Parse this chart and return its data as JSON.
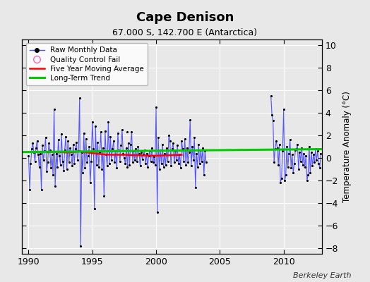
{
  "title": "Cape Denison",
  "subtitle": "67.000 S, 142.700 E (Antarctica)",
  "ylabel": "Temperature Anomaly (°C)",
  "watermark": "Berkeley Earth",
  "xlim": [
    1989.5,
    2013.0
  ],
  "ylim": [
    -8.5,
    10.5
  ],
  "yticks": [
    -8,
    -6,
    -4,
    -2,
    0,
    2,
    4,
    6,
    8,
    10
  ],
  "xticks": [
    1990,
    1995,
    2000,
    2005,
    2010
  ],
  "bg_color": "#e8e8e8",
  "raw_color": "#5555ff",
  "ma_color": "#ff0000",
  "trend_color": "#00cc00",
  "qc_color": "#ff69b4",
  "segment1": [
    [
      1990.0,
      0.2
    ],
    [
      1990.083,
      -2.8
    ],
    [
      1990.167,
      -0.5
    ],
    [
      1990.25,
      0.8
    ],
    [
      1990.333,
      1.3
    ],
    [
      1990.417,
      0.5
    ],
    [
      1990.5,
      -0.3
    ],
    [
      1990.583,
      0.9
    ],
    [
      1990.667,
      1.5
    ],
    [
      1990.75,
      0.3
    ],
    [
      1990.833,
      -0.8
    ],
    [
      1990.917,
      0.4
    ],
    [
      1991.0,
      -2.8
    ],
    [
      1991.083,
      1.1
    ],
    [
      1991.167,
      -0.2
    ],
    [
      1991.25,
      0.6
    ],
    [
      1991.333,
      1.8
    ],
    [
      1991.417,
      -1.2
    ],
    [
      1991.5,
      -0.4
    ],
    [
      1991.583,
      1.3
    ],
    [
      1991.667,
      0.7
    ],
    [
      1991.75,
      -0.9
    ],
    [
      1991.833,
      0.3
    ],
    [
      1991.917,
      -1.5
    ],
    [
      1992.0,
      4.3
    ],
    [
      1992.083,
      -2.5
    ],
    [
      1992.167,
      0.4
    ],
    [
      1992.25,
      -0.8
    ],
    [
      1992.333,
      1.6
    ],
    [
      1992.417,
      0.2
    ],
    [
      1992.5,
      -0.6
    ],
    [
      1992.583,
      2.1
    ],
    [
      1992.667,
      -0.3
    ],
    [
      1992.75,
      -1.1
    ],
    [
      1992.833,
      0.7
    ],
    [
      1992.917,
      1.9
    ],
    [
      1993.0,
      -1.0
    ],
    [
      1993.083,
      1.5
    ],
    [
      1993.167,
      -0.4
    ],
    [
      1993.25,
      0.9
    ],
    [
      1993.333,
      0.3
    ],
    [
      1993.417,
      -0.7
    ],
    [
      1993.5,
      1.2
    ],
    [
      1993.583,
      -0.5
    ],
    [
      1993.667,
      0.8
    ],
    [
      1993.75,
      1.4
    ],
    [
      1993.833,
      -0.2
    ],
    [
      1993.917,
      0.6
    ],
    [
      1994.0,
      5.3
    ],
    [
      1994.083,
      -7.8
    ],
    [
      1994.167,
      0.5
    ],
    [
      1994.25,
      -1.3
    ],
    [
      1994.333,
      2.2
    ],
    [
      1994.417,
      -0.9
    ],
    [
      1994.5,
      1.7
    ],
    [
      1994.583,
      -0.4
    ],
    [
      1994.667,
      0.2
    ],
    [
      1994.75,
      1.0
    ],
    [
      1994.833,
      -2.2
    ],
    [
      1994.917,
      -0.3
    ],
    [
      1995.0,
      3.2
    ],
    [
      1995.083,
      0.8
    ],
    [
      1995.167,
      -4.5
    ],
    [
      1995.25,
      2.8
    ],
    [
      1995.333,
      -0.6
    ],
    [
      1995.417,
      1.4
    ],
    [
      1995.5,
      -0.8
    ],
    [
      1995.583,
      0.5
    ],
    [
      1995.667,
      2.3
    ],
    [
      1995.75,
      -1.0
    ],
    [
      1995.833,
      0.9
    ],
    [
      1995.917,
      -3.4
    ],
    [
      1996.0,
      2.4
    ],
    [
      1996.083,
      0.3
    ],
    [
      1996.167,
      -0.7
    ],
    [
      1996.25,
      3.2
    ],
    [
      1996.333,
      -0.5
    ],
    [
      1996.417,
      1.9
    ],
    [
      1996.5,
      -0.2
    ],
    [
      1996.583,
      0.8
    ],
    [
      1996.667,
      1.5
    ],
    [
      1996.75,
      -0.4
    ],
    [
      1996.833,
      0.6
    ],
    [
      1996.917,
      -0.9
    ],
    [
      1997.0,
      2.2
    ],
    [
      1997.083,
      0.7
    ],
    [
      1997.167,
      -0.3
    ],
    [
      1997.25,
      1.1
    ],
    [
      1997.333,
      2.5
    ],
    [
      1997.417,
      0.4
    ],
    [
      1997.5,
      0.0
    ],
    [
      1997.583,
      -0.5
    ],
    [
      1997.667,
      0.9
    ],
    [
      1997.75,
      -0.8
    ],
    [
      1997.833,
      1.3
    ],
    [
      1997.917,
      -0.6
    ],
    [
      1998.0,
      1.2
    ],
    [
      1998.083,
      2.3
    ],
    [
      1998.167,
      -0.4
    ],
    [
      1998.25,
      0.6
    ],
    [
      1998.333,
      -0.2
    ],
    [
      1998.417,
      0.8
    ],
    [
      1998.5,
      -0.3
    ],
    [
      1998.583,
      1.0
    ],
    [
      1998.667,
      0.4
    ],
    [
      1998.75,
      -0.7
    ],
    [
      1998.833,
      0.5
    ],
    [
      1998.917,
      -0.1
    ],
    [
      1999.0,
      0.3
    ],
    [
      1999.083,
      0.7
    ],
    [
      1999.167,
      -0.5
    ],
    [
      1999.25,
      0.4
    ],
    [
      1999.333,
      -0.8
    ],
    [
      1999.417,
      0.2
    ],
    [
      1999.5,
      0.6
    ],
    [
      1999.583,
      -0.3
    ],
    [
      1999.667,
      0.9
    ],
    [
      1999.75,
      -0.4
    ],
    [
      1999.833,
      0.1
    ],
    [
      1999.917,
      -0.6
    ],
    [
      2000.0,
      4.5
    ],
    [
      2000.083,
      -4.8
    ],
    [
      2000.167,
      1.8
    ],
    [
      2000.25,
      -1.0
    ],
    [
      2000.333,
      0.7
    ],
    [
      2000.417,
      -0.5
    ],
    [
      2000.5,
      1.2
    ],
    [
      2000.583,
      -0.8
    ],
    [
      2000.667,
      0.4
    ],
    [
      2000.75,
      -0.6
    ],
    [
      2000.833,
      0.9
    ],
    [
      2000.917,
      -0.3
    ],
    [
      2001.0,
      2.0
    ],
    [
      2001.083,
      1.5
    ],
    [
      2001.167,
      -0.7
    ],
    [
      2001.25,
      0.8
    ],
    [
      2001.333,
      1.3
    ],
    [
      2001.417,
      -0.4
    ],
    [
      2001.5,
      0.6
    ],
    [
      2001.583,
      -0.2
    ],
    [
      2001.667,
      1.1
    ],
    [
      2001.75,
      -0.5
    ],
    [
      2001.833,
      0.3
    ],
    [
      2001.917,
      -0.9
    ],
    [
      2002.0,
      1.5
    ],
    [
      2002.083,
      0.8
    ],
    [
      2002.167,
      -0.3
    ],
    [
      2002.25,
      1.7
    ],
    [
      2002.333,
      -0.6
    ],
    [
      2002.417,
      0.9
    ],
    [
      2002.5,
      -0.4
    ],
    [
      2002.583,
      0.5
    ],
    [
      2002.667,
      3.4
    ],
    [
      2002.75,
      -0.7
    ],
    [
      2002.833,
      1.0
    ],
    [
      2002.917,
      -0.2
    ],
    [
      2003.0,
      1.8
    ],
    [
      2003.083,
      -2.6
    ],
    [
      2003.167,
      0.4
    ],
    [
      2003.25,
      -0.8
    ],
    [
      2003.333,
      1.2
    ],
    [
      2003.417,
      -0.5
    ],
    [
      2003.5,
      0.7
    ],
    [
      2003.583,
      -0.3
    ],
    [
      2003.667,
      0.9
    ],
    [
      2003.75,
      -1.5
    ],
    [
      2003.833,
      0.6
    ],
    [
      2003.917,
      -0.4
    ]
  ],
  "isolated_dots": [
    [
      1997.75,
      2.3
    ]
  ],
  "segment2": [
    [
      2009.0,
      5.5
    ],
    [
      2009.083,
      3.8
    ],
    [
      2009.167,
      3.3
    ],
    [
      2009.25,
      -0.4
    ],
    [
      2009.333,
      0.8
    ],
    [
      2009.417,
      1.5
    ],
    [
      2009.5,
      0.9
    ],
    [
      2009.583,
      -0.6
    ],
    [
      2009.667,
      1.2
    ],
    [
      2009.75,
      -2.2
    ],
    [
      2009.833,
      -1.8
    ],
    [
      2009.917,
      0.6
    ],
    [
      2010.0,
      4.3
    ],
    [
      2010.083,
      -2.0
    ],
    [
      2010.167,
      -1.5
    ],
    [
      2010.25,
      1.0
    ],
    [
      2010.333,
      -0.8
    ],
    [
      2010.417,
      0.4
    ],
    [
      2010.5,
      1.6
    ],
    [
      2010.583,
      -0.9
    ],
    [
      2010.667,
      0.3
    ],
    [
      2010.75,
      -1.3
    ],
    [
      2010.833,
      -0.5
    ],
    [
      2010.917,
      0.7
    ],
    [
      2011.0,
      0.8
    ],
    [
      2011.083,
      1.2
    ],
    [
      2011.167,
      -1.0
    ],
    [
      2011.25,
      0.5
    ],
    [
      2011.333,
      -0.3
    ],
    [
      2011.417,
      0.9
    ],
    [
      2011.5,
      -0.6
    ],
    [
      2011.583,
      0.4
    ],
    [
      2011.667,
      -0.8
    ],
    [
      2011.75,
      0.2
    ],
    [
      2011.833,
      -2.0
    ],
    [
      2011.917,
      -1.5
    ],
    [
      2012.0,
      1.0
    ],
    [
      2012.083,
      -1.3
    ],
    [
      2012.167,
      0.5
    ],
    [
      2012.25,
      -0.7
    ],
    [
      2012.333,
      0.3
    ],
    [
      2012.417,
      -0.4
    ],
    [
      2012.5,
      0.8
    ],
    [
      2012.583,
      -0.2
    ],
    [
      2012.667,
      0.6
    ],
    [
      2012.75,
      -0.5
    ],
    [
      2012.833,
      -0.9
    ],
    [
      2012.917,
      0.4
    ]
  ],
  "moving_avg": [
    [
      1991.5,
      0.5
    ],
    [
      1992.0,
      0.55
    ],
    [
      1992.5,
      0.52
    ],
    [
      1993.0,
      0.48
    ],
    [
      1993.5,
      0.52
    ],
    [
      1994.0,
      0.58
    ],
    [
      1994.5,
      0.5
    ],
    [
      1995.0,
      0.42
    ],
    [
      1995.5,
      0.36
    ],
    [
      1996.0,
      0.3
    ],
    [
      1996.5,
      0.28
    ],
    [
      1997.0,
      0.28
    ],
    [
      1997.5,
      0.28
    ],
    [
      1998.0,
      0.26
    ],
    [
      1998.5,
      0.24
    ],
    [
      1999.0,
      0.22
    ],
    [
      1999.5,
      0.2
    ],
    [
      2000.0,
      0.2
    ],
    [
      2000.5,
      0.22
    ],
    [
      2001.0,
      0.24
    ],
    [
      2001.5,
      0.26
    ],
    [
      2002.0,
      0.28
    ]
  ],
  "trend_x": [
    1989.5,
    2013.0
  ],
  "trend_y": [
    0.52,
    0.78
  ]
}
